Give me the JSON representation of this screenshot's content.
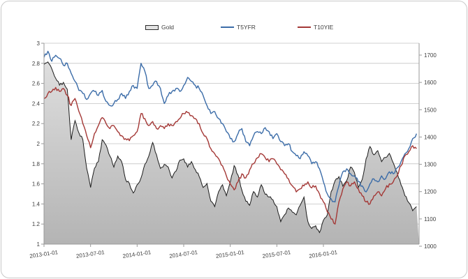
{
  "colors": {
    "t5yfr_line": "#3b6ca8",
    "t10yie_line": "#a43836",
    "gold_fill_top": "#dedede",
    "gold_fill_bottom": "#b4b4b4",
    "gold_stroke": "#1c1c1c",
    "grid": "#c3c3c3",
    "axis": "#9a9a9a",
    "tick_text": "#3f3f3f"
  },
  "legend": [
    {
      "label": "Gold",
      "swatch": "area"
    },
    {
      "label": "T5YFR",
      "swatch": "line",
      "color": "#3b6ca8"
    },
    {
      "label": "T10YIE",
      "swatch": "line",
      "color": "#a43836"
    }
  ],
  "chart_data": {
    "type": "area+line",
    "title": "",
    "x_axis": {
      "tick_labels": [
        "2013-01-01",
        "2013-07-01",
        "2014-01-01",
        "2014-07-01",
        "2015-01-01",
        "2015-07-01",
        "2016-01-01"
      ],
      "months_between_ticks": 6,
      "sampling": "half-month steps from 2013-01-01 to 2017-01-01"
    },
    "left_axis": {
      "min": 1,
      "max": 3,
      "step": 0.2,
      "tick_labels": [
        "3",
        "2.8",
        "2.6",
        "2.4",
        "2.2",
        "2",
        "1.8",
        "1.6",
        "1.4",
        "1.2",
        "1"
      ]
    },
    "right_axis": {
      "min": 1000,
      "max": 1700,
      "step": 100,
      "tick_labels": [
        "1700",
        "1600",
        "1500",
        "1400",
        "1300",
        "1200",
        "1100",
        "1000"
      ]
    },
    "grid": "horizontal",
    "legend_position": "top",
    "series": [
      {
        "name": "Gold",
        "axis": "right",
        "kind": "area",
        "jitter": 5,
        "values": [
          1665,
          1675,
          1650,
          1615,
          1590,
          1600,
          1575,
          1390,
          1460,
          1415,
          1390,
          1285,
          1215,
          1285,
          1310,
          1390,
          1370,
          1330,
          1290,
          1330,
          1310,
          1245,
          1230,
          1195,
          1225,
          1250,
          1300,
          1330,
          1380,
          1335,
          1285,
          1300,
          1290,
          1250,
          1275,
          1315,
          1320,
          1290,
          1310,
          1280,
          1255,
          1215,
          1230,
          1165,
          1145,
          1200,
          1225,
          1185,
          1235,
          1295,
          1260,
          1205,
          1165,
          1150,
          1200,
          1180,
          1225,
          1190,
          1180,
          1170,
          1145,
          1090,
          1115,
          1140,
          1125,
          1115,
          1150,
          1180,
          1090,
          1065,
          1075,
          1050,
          1095,
          1115,
          1200,
          1240,
          1255,
          1220,
          1240,
          1290,
          1270,
          1215,
          1245,
          1320,
          1365,
          1335,
          1350,
          1310,
          1325,
          1340,
          1305,
          1270,
          1225,
          1185,
          1160,
          1130,
          1145
        ]
      },
      {
        "name": "T5YFR",
        "axis": "left",
        "kind": "line",
        "jitter": 0.018,
        "values": [
          2.86,
          2.92,
          2.82,
          2.88,
          2.85,
          2.78,
          2.8,
          2.7,
          2.62,
          2.53,
          2.5,
          2.44,
          2.5,
          2.52,
          2.48,
          2.53,
          2.42,
          2.38,
          2.4,
          2.44,
          2.5,
          2.45,
          2.52,
          2.58,
          2.55,
          2.8,
          2.72,
          2.55,
          2.58,
          2.62,
          2.55,
          2.4,
          2.48,
          2.52,
          2.55,
          2.52,
          2.58,
          2.66,
          2.62,
          2.58,
          2.55,
          2.48,
          2.38,
          2.3,
          2.32,
          2.25,
          2.2,
          2.12,
          2.05,
          2.02,
          2.1,
          2.15,
          2.02,
          1.98,
          2.08,
          2.12,
          2.1,
          2.16,
          2.12,
          2.05,
          2.1,
          2.02,
          1.98,
          2.0,
          1.92,
          1.88,
          1.85,
          1.92,
          1.88,
          1.8,
          1.82,
          1.75,
          1.62,
          1.5,
          1.45,
          1.42,
          1.58,
          1.72,
          1.75,
          1.7,
          1.68,
          1.62,
          1.58,
          1.52,
          1.6,
          1.65,
          1.62,
          1.68,
          1.65,
          1.72,
          1.7,
          1.76,
          1.82,
          1.9,
          1.95,
          2.05,
          2.1
        ]
      },
      {
        "name": "T10YIE",
        "axis": "left",
        "kind": "line",
        "jitter": 0.018,
        "values": [
          2.45,
          2.5,
          2.52,
          2.56,
          2.52,
          2.55,
          2.48,
          2.38,
          2.45,
          2.32,
          2.2,
          2.08,
          1.96,
          2.1,
          2.18,
          2.26,
          2.2,
          2.15,
          2.18,
          2.12,
          2.08,
          2.05,
          2.03,
          2.08,
          2.12,
          2.3,
          2.25,
          2.18,
          2.22,
          2.15,
          2.18,
          2.15,
          2.2,
          2.18,
          2.22,
          2.25,
          2.3,
          2.31,
          2.28,
          2.25,
          2.2,
          2.1,
          2.05,
          1.95,
          1.9,
          1.85,
          1.78,
          1.68,
          1.6,
          1.54,
          1.62,
          1.7,
          1.66,
          1.74,
          1.8,
          1.86,
          1.9,
          1.86,
          1.82,
          1.85,
          1.8,
          1.74,
          1.7,
          1.65,
          1.58,
          1.52,
          1.55,
          1.58,
          1.62,
          1.56,
          1.58,
          1.5,
          1.42,
          1.32,
          1.25,
          1.2,
          1.42,
          1.55,
          1.62,
          1.58,
          1.62,
          1.55,
          1.48,
          1.42,
          1.4,
          1.48,
          1.52,
          1.48,
          1.55,
          1.6,
          1.62,
          1.68,
          1.78,
          1.88,
          1.92,
          1.98,
          1.95
        ]
      }
    ]
  }
}
